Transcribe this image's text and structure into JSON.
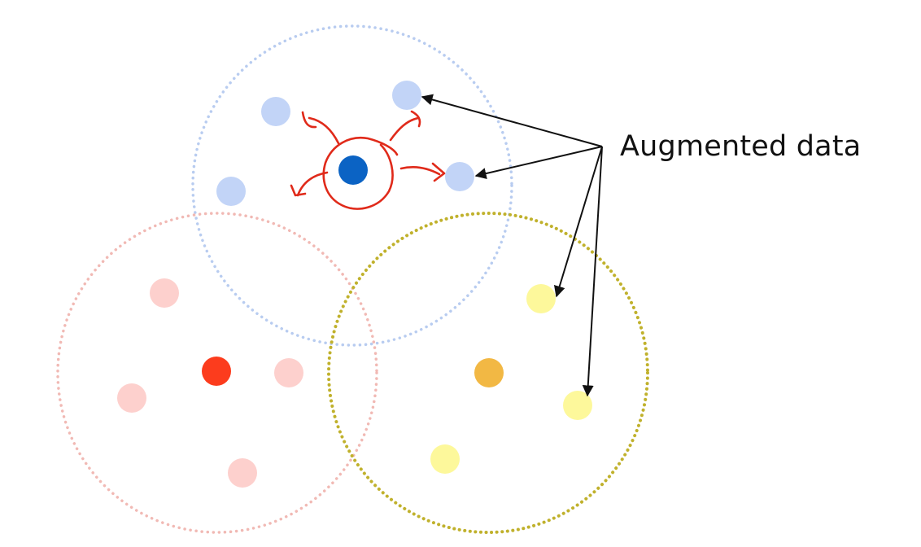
{
  "annotation": {
    "text": "Augmented data",
    "color": "#111111"
  },
  "colors": {
    "blue_cluster_ring": "#b8ccf0",
    "red_cluster_ring": "#f1b9b4",
    "yellow_cluster_ring": "#c0b12c",
    "blue_anchor": "#0b63c4",
    "blue_augmented": "#c2d4f7",
    "red_anchor": "#fc3c1d",
    "red_augmented": "#fdd0cd",
    "yellow_anchor": "#f2b844",
    "yellow_augmented": "#fdf89b",
    "scribble": "#e02a1a",
    "arrow": "#111111"
  },
  "clusters": [
    {
      "name": "blue",
      "anchor_count": 1,
      "augmented_count": 4
    },
    {
      "name": "red",
      "anchor_count": 1,
      "augmented_count": 4
    },
    {
      "name": "yellow",
      "anchor_count": 1,
      "augmented_count": 3
    }
  ]
}
